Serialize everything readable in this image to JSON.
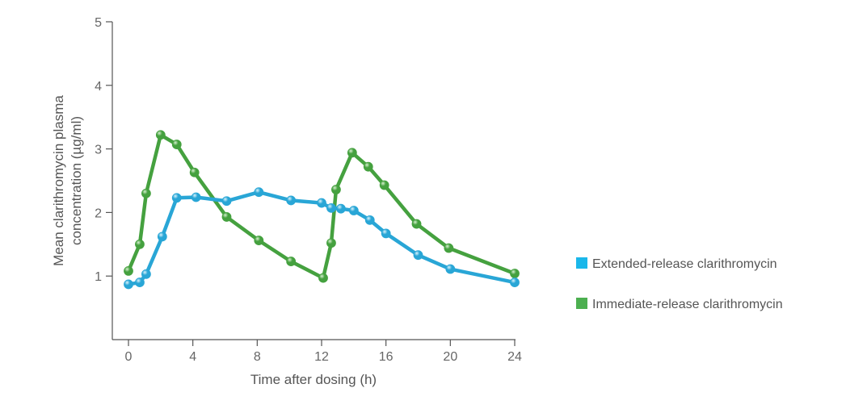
{
  "chart_data": {
    "type": "line",
    "title": "",
    "xlabel": "Time after dosing (h)",
    "ylabel_lines": [
      "Mean clarithromycin plasma",
      "concentration (µg/ml)"
    ],
    "xlim": [
      0,
      24
    ],
    "ylim": [
      0,
      5
    ],
    "xticks": [
      0,
      4,
      8,
      12,
      16,
      20,
      24
    ],
    "yticks": [
      1,
      2,
      3,
      4,
      5
    ],
    "grid": false,
    "legend_position": "right",
    "series": [
      {
        "name": "Extended-release clarithromycin",
        "color": "#29a6d6",
        "legend_color": "#1ab7ea",
        "x": [
          0,
          0.7,
          1.1,
          2.1,
          3,
          4.2,
          6.1,
          8.1,
          10.1,
          12,
          12.6,
          13.2,
          14,
          15,
          16,
          18,
          20,
          24
        ],
        "y": [
          0.87,
          0.9,
          1.03,
          1.62,
          2.23,
          2.24,
          2.18,
          2.32,
          2.19,
          2.15,
          2.07,
          2.06,
          2.03,
          1.88,
          1.67,
          1.33,
          1.11,
          0.9
        ]
      },
      {
        "name": "Immediate-release clarithromycin",
        "color": "#45a13f",
        "legend_color": "#4caf50",
        "x": [
          0,
          0.7,
          1.1,
          2,
          3,
          4.1,
          6.1,
          8.1,
          10.1,
          12.1,
          12.6,
          12.9,
          13.9,
          14.9,
          15.9,
          17.9,
          19.9,
          24
        ],
        "y": [
          1.08,
          1.5,
          2.3,
          3.22,
          3.07,
          2.63,
          1.93,
          1.56,
          1.23,
          0.97,
          1.52,
          2.36,
          2.94,
          2.72,
          2.43,
          1.82,
          1.44,
          1.04
        ]
      }
    ]
  }
}
